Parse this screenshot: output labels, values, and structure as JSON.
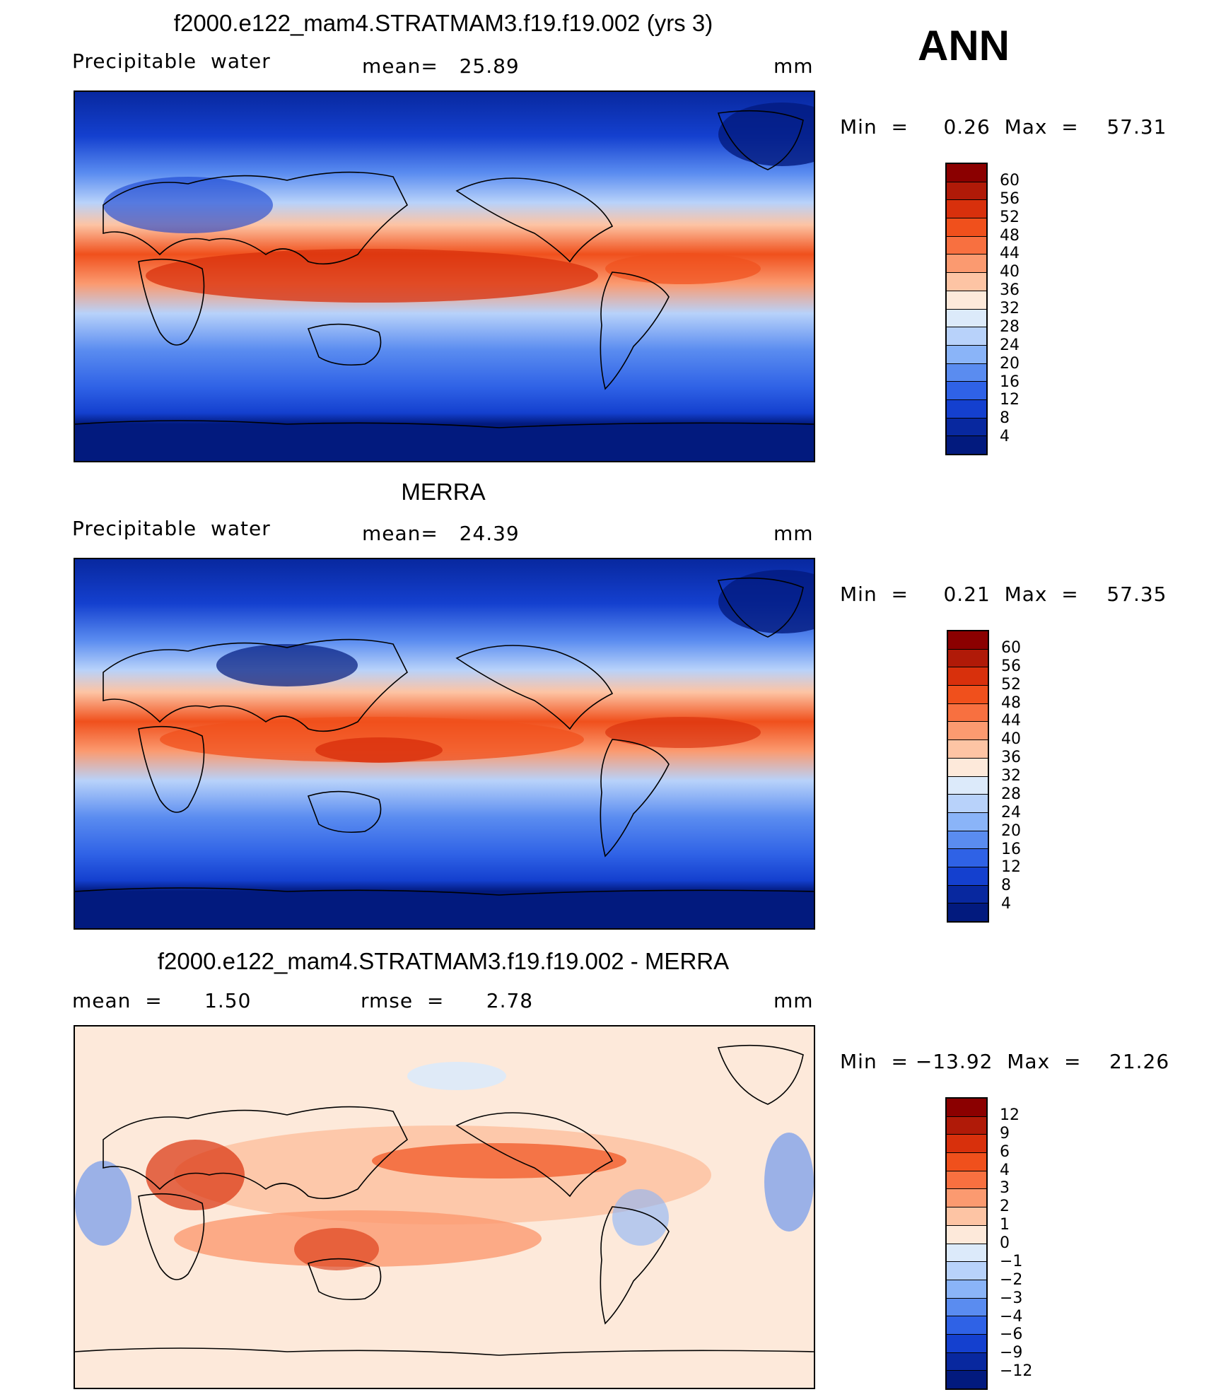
{
  "season": "ANN",
  "panels": [
    {
      "title": "f2000.e122_mam4.STRATMAM3.f19.f19.002 (yrs 3)",
      "left_text": "Precipitable  water",
      "center_text": "mean=   25.89",
      "units": "mm",
      "minmax": "Min  =     0.26  Max  =    57.31",
      "colorbar_labels": [
        "60",
        "56",
        "52",
        "48",
        "44",
        "40",
        "36",
        "32",
        "28",
        "24",
        "20",
        "16",
        "12",
        "8",
        "4"
      ],
      "colorbar_colors": [
        "#8b0000",
        "#b01a08",
        "#d8300c",
        "#f0501c",
        "#f87040",
        "#fb9a70",
        "#fdc4a4",
        "#fde9da",
        "#dceafa",
        "#b8d2fa",
        "#8ab4f8",
        "#5a8cf0",
        "#2f62e6",
        "#1440cf",
        "#08289f",
        "#021a7e"
      ]
    },
    {
      "title": "MERRA",
      "left_text": "Precipitable  water",
      "center_text": "mean=   24.39",
      "units": "mm",
      "minmax": "Min  =     0.21  Max  =    57.35",
      "colorbar_labels": [
        "60",
        "56",
        "52",
        "48",
        "44",
        "40",
        "36",
        "32",
        "28",
        "24",
        "20",
        "16",
        "12",
        "8",
        "4"
      ],
      "colorbar_colors": [
        "#8b0000",
        "#b01a08",
        "#d8300c",
        "#f0501c",
        "#f87040",
        "#fb9a70",
        "#fdc4a4",
        "#fde9da",
        "#dceafa",
        "#b8d2fa",
        "#8ab4f8",
        "#5a8cf0",
        "#2f62e6",
        "#1440cf",
        "#08289f",
        "#021a7e"
      ]
    },
    {
      "title": "f2000.e122_mam4.STRATMAM3.f19.f19.002 - MERRA",
      "left_text": "mean  =      1.50",
      "center_text": "rmse  =      2.78",
      "units": "mm",
      "minmax": "Min  = −13.92  Max  =    21.26",
      "colorbar_labels": [
        "12",
        "9",
        "6",
        "4",
        "3",
        "2",
        "1",
        "0",
        "−1",
        "−2",
        "−3",
        "−4",
        "−6",
        "−9",
        "−12"
      ],
      "colorbar_colors": [
        "#8b0000",
        "#b01a08",
        "#d8300c",
        "#f0501c",
        "#f87040",
        "#fb9a70",
        "#fdc4a4",
        "#fde9da",
        "#dceafa",
        "#b8d2fa",
        "#8ab4f8",
        "#5a8cf0",
        "#2f62e6",
        "#1440cf",
        "#08289f",
        "#021a7e"
      ]
    }
  ]
}
